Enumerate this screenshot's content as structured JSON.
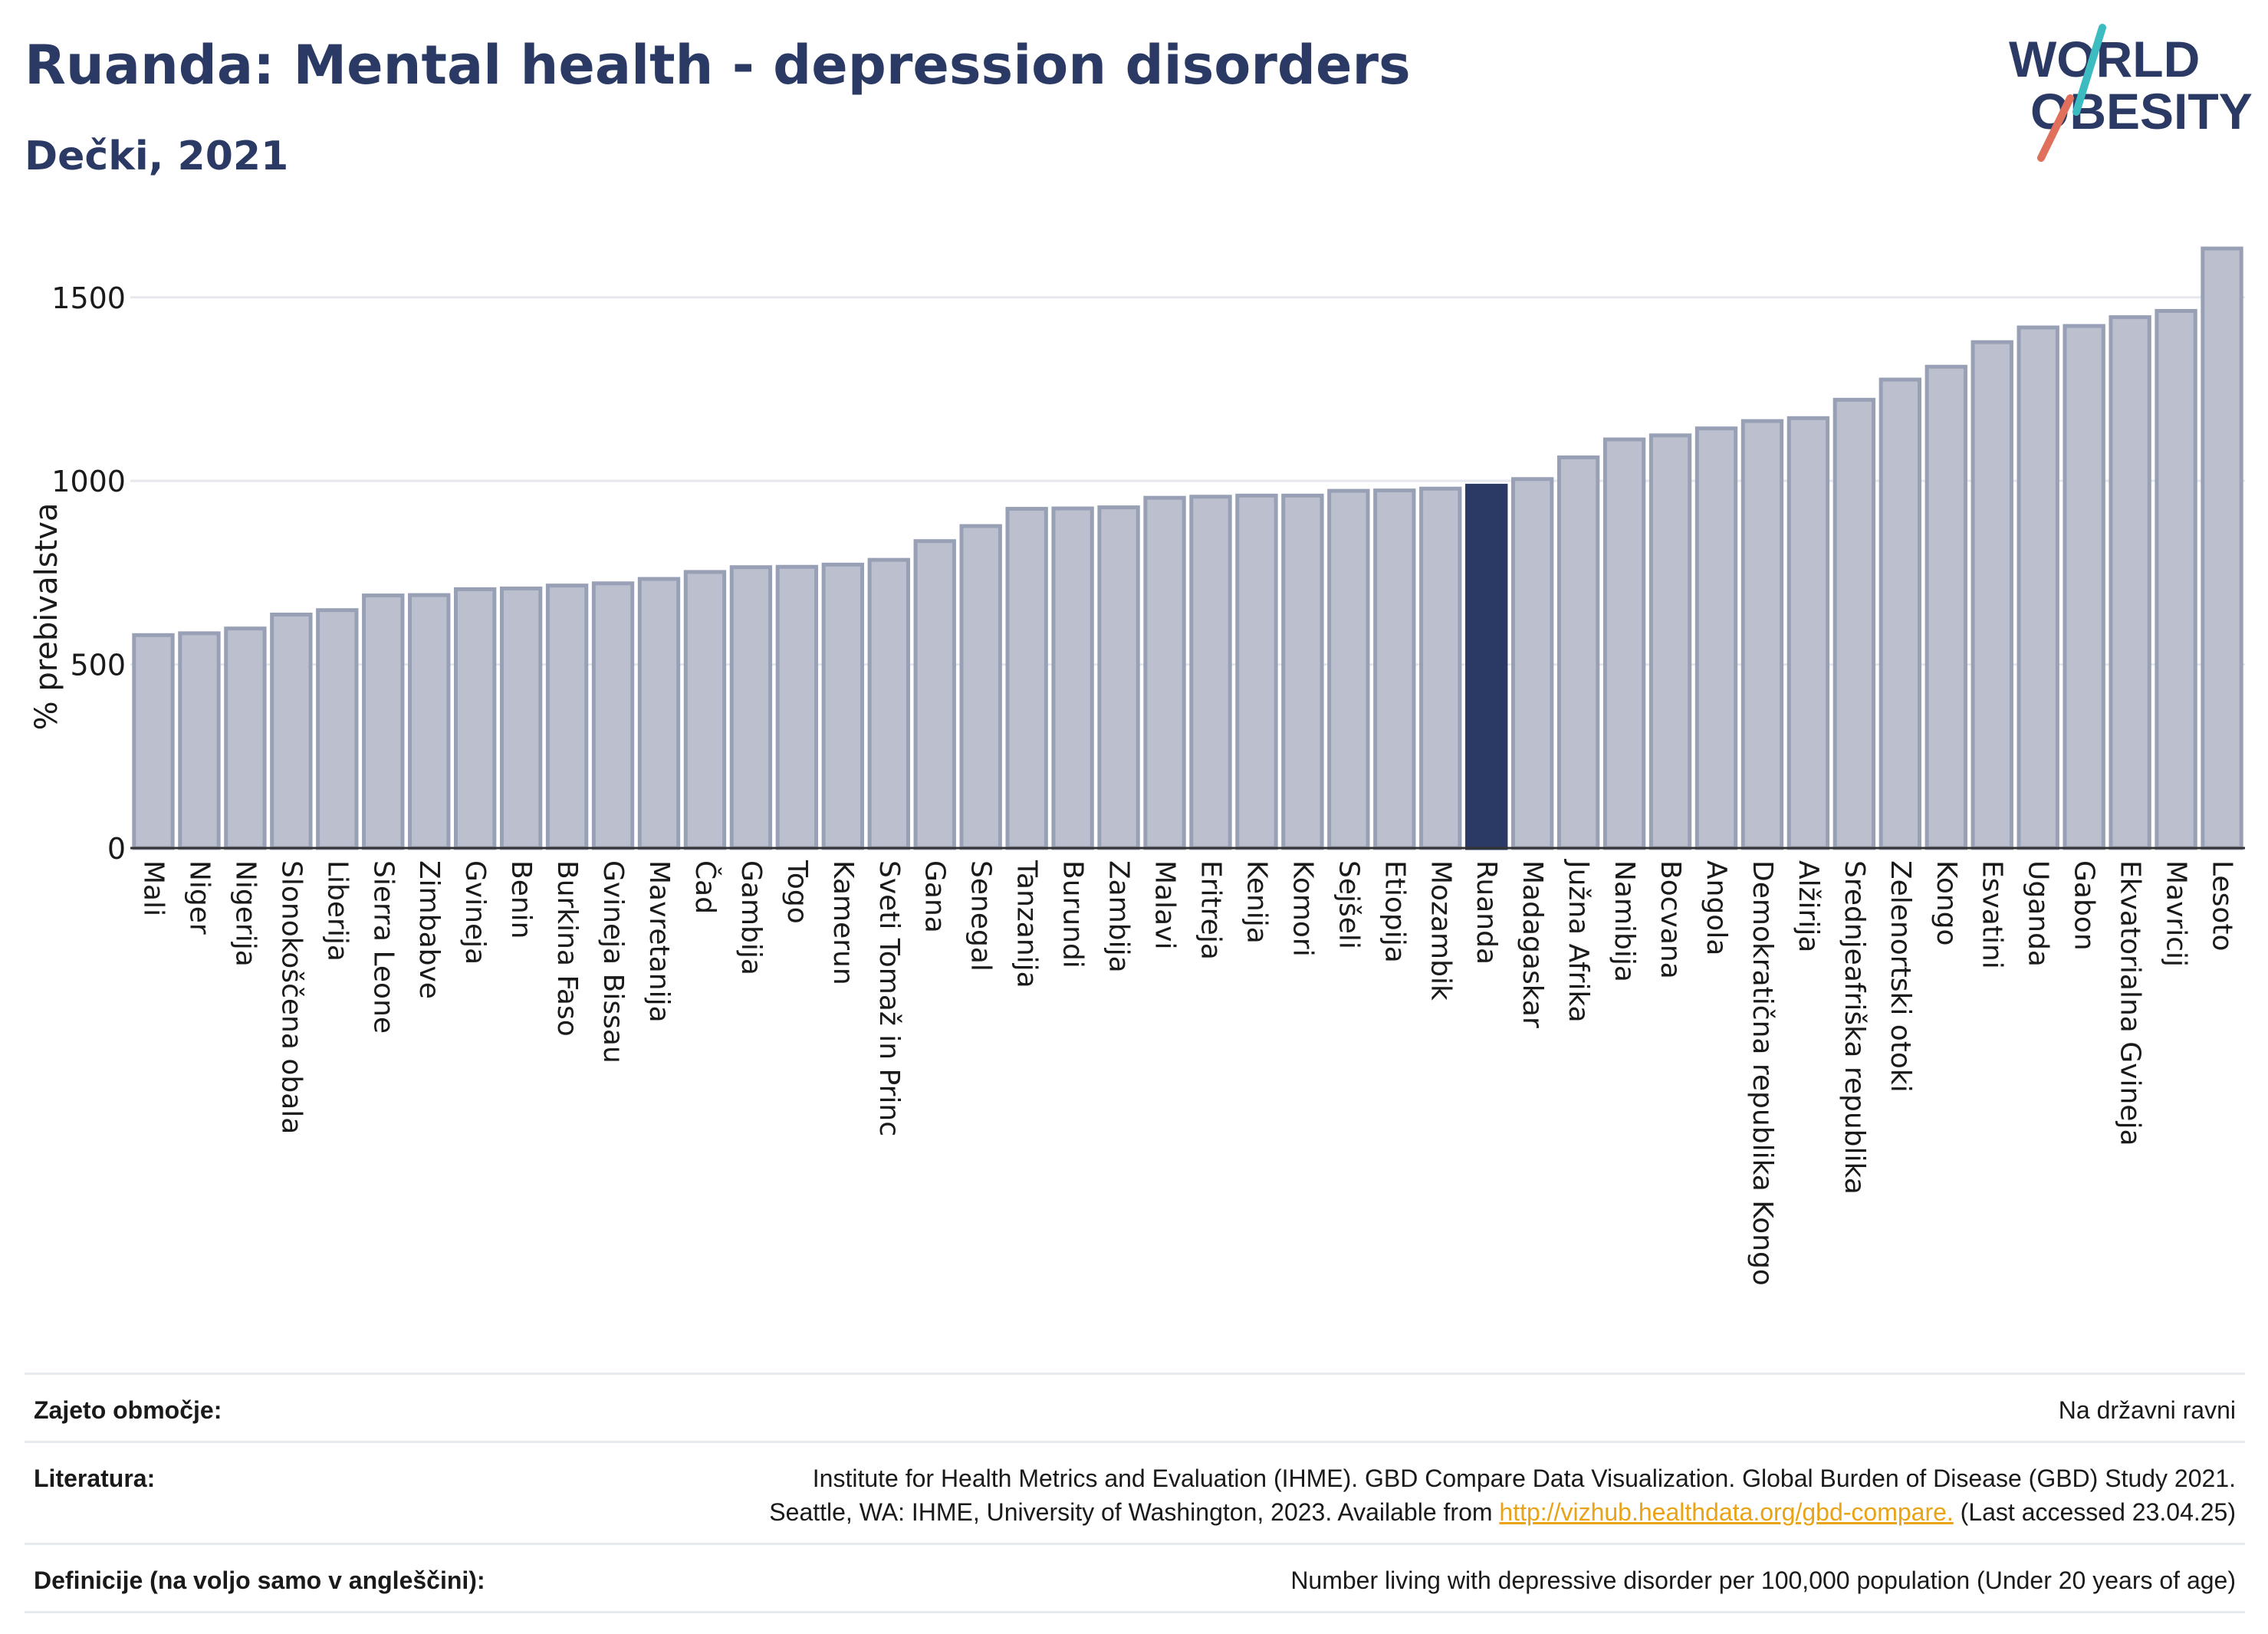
{
  "header": {
    "title": "Ruanda: Mental health - depression disorders",
    "subtitle": "Dečki, 2021"
  },
  "logo": {
    "line1": "WORLD",
    "line2": "OBESITY"
  },
  "chart_data": {
    "type": "bar",
    "ylabel": "% prebivalstva",
    "ylim": [
      0,
      1700
    ],
    "yticks": [
      0,
      500,
      1000,
      1500
    ],
    "grid": true,
    "highlight": "Ruanda",
    "colors": {
      "bar": "#bcc0ce",
      "bar_edge": "#98a0b6",
      "highlight": "#2b3a64"
    },
    "categories": [
      "Mali",
      "Niger",
      "Nigerija",
      "Slonokoščena obala",
      "Liberija",
      "Sierra Leone",
      "Zimbabve",
      "Gvineja",
      "Benin",
      "Burkina Faso",
      "Gvineja Bissau",
      "Mavretanija",
      "Čad",
      "Gambija",
      "Togo",
      "Kamerun",
      "Sveti Tomaž in Princ",
      "Gana",
      "Senegal",
      "Tanzanija",
      "Burundi",
      "Zambija",
      "Malavi",
      "Eritreja",
      "Kenija",
      "Komori",
      "Sejšeli",
      "Etiopija",
      "Mozambik",
      "Ruanda",
      "Madagaskar",
      "Južna Afrika",
      "Namibija",
      "Bocvana",
      "Angola",
      "Demokratična republika Kongo",
      "Alžirija",
      "Srednjeafriška republika",
      "Zelenortski otoki",
      "Kongo",
      "Esvatini",
      "Uganda",
      "Gabon",
      "Ekvatorialna Gvineja",
      "Mavricij",
      "Lesoto"
    ],
    "values": [
      580,
      585,
      598,
      636,
      648,
      688,
      689,
      705,
      707,
      715,
      721,
      733,
      752,
      765,
      766,
      772,
      785,
      836,
      877,
      924,
      925,
      928,
      954,
      957,
      960,
      960,
      973,
      974,
      979,
      987,
      1005,
      1064,
      1113,
      1124,
      1143,
      1163,
      1171,
      1221,
      1276,
      1311,
      1378,
      1418,
      1422,
      1446,
      1463,
      1633
    ]
  },
  "meta": {
    "coverage_label": "Zajeto območje:",
    "coverage_value": "Na državni ravni",
    "references_label": "Literatura:",
    "references_line1": "Institute for Health Metrics and Evaluation (IHME). GBD Compare Data Visualization. Global Burden of Disease (GBD) Study 2021.",
    "references_line2_prefix": "Seattle, WA: IHME, University of Washington, 2023. Available from ",
    "references_link": "http://vizhub.healthdata.org/gbd-compare.",
    "references_line2_suffix": " (Last accessed 23.04.25)",
    "definitions_label": "Definicije (na voljo samo v angleščini):",
    "definitions_value": "Number living with depressive disorder per 100,000 population (Under 20 years of age)"
  }
}
